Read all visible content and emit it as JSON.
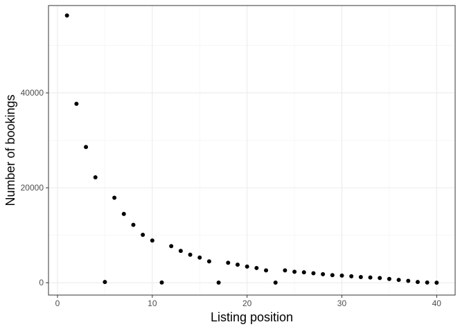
{
  "chart_data": {
    "type": "scatter",
    "xlabel": "Listing position",
    "ylabel": "Number of bookings",
    "xlim": [
      -0.95,
      41.95
    ],
    "ylim": [
      -2600,
      58400
    ],
    "x_ticks": [
      0,
      10,
      20,
      30,
      40
    ],
    "x_tick_labels": [
      "0",
      "10",
      "20",
      "30",
      "40"
    ],
    "y_ticks": [
      0,
      20000,
      40000
    ],
    "y_tick_labels": [
      "0",
      "20000",
      "40000"
    ],
    "grid": true,
    "theme": "bw",
    "point_color": "#000000",
    "points": [
      {
        "x": 1,
        "y": 56300
      },
      {
        "x": 2,
        "y": 37700
      },
      {
        "x": 3,
        "y": 28600
      },
      {
        "x": 4,
        "y": 22200
      },
      {
        "x": 5,
        "y": 150
      },
      {
        "x": 6,
        "y": 17900
      },
      {
        "x": 7,
        "y": 14500
      },
      {
        "x": 8,
        "y": 12200
      },
      {
        "x": 9,
        "y": 10100
      },
      {
        "x": 10,
        "y": 8900
      },
      {
        "x": 11,
        "y": 50
      },
      {
        "x": 12,
        "y": 7700
      },
      {
        "x": 13,
        "y": 6700
      },
      {
        "x": 14,
        "y": 5900
      },
      {
        "x": 15,
        "y": 5300
      },
      {
        "x": 16,
        "y": 4500
      },
      {
        "x": 17,
        "y": 30
      },
      {
        "x": 18,
        "y": 4200
      },
      {
        "x": 19,
        "y": 3800
      },
      {
        "x": 20,
        "y": 3400
      },
      {
        "x": 21,
        "y": 3100
      },
      {
        "x": 22,
        "y": 2600
      },
      {
        "x": 23,
        "y": 20
      },
      {
        "x": 24,
        "y": 2600
      },
      {
        "x": 25,
        "y": 2300
      },
      {
        "x": 26,
        "y": 2200
      },
      {
        "x": 27,
        "y": 2000
      },
      {
        "x": 28,
        "y": 1800
      },
      {
        "x": 29,
        "y": 1600
      },
      {
        "x": 30,
        "y": 1500
      },
      {
        "x": 31,
        "y": 1350
      },
      {
        "x": 32,
        "y": 1200
      },
      {
        "x": 33,
        "y": 1100
      },
      {
        "x": 34,
        "y": 1000
      },
      {
        "x": 35,
        "y": 800
      },
      {
        "x": 36,
        "y": 600
      },
      {
        "x": 37,
        "y": 400
      },
      {
        "x": 38,
        "y": 150
      },
      {
        "x": 39,
        "y": 50
      },
      {
        "x": 40,
        "y": 0
      }
    ]
  }
}
